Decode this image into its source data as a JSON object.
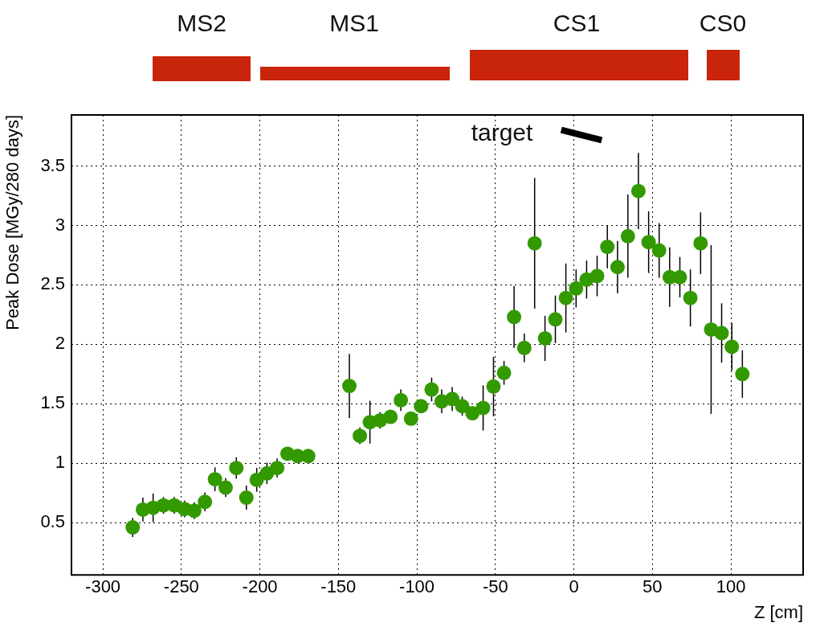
{
  "chart_data": {
    "type": "scatter",
    "xlabel": "Z [cm]",
    "ylabel": "Peak Dose [MGy/280 days]",
    "annotations": [
      "MS2",
      "MS1",
      "CS1",
      "CS0",
      "target"
    ],
    "xlim": [
      -320,
      146
    ],
    "xticks": [
      -300,
      -250,
      -200,
      -150,
      -100,
      -50,
      0,
      50,
      100
    ],
    "ylim": [
      0.06,
      3.93
    ],
    "yticks": [
      0.5,
      1,
      1.5,
      2,
      2.5,
      3,
      3.5
    ],
    "grid": true,
    "marker": "circle",
    "series": [
      {
        "color": "#339900",
        "x": [
          -281,
          -274.5,
          -268,
          -261.4,
          -254.5,
          -248,
          -241.8,
          -235,
          -228.6,
          -221.8,
          -215,
          -208.6,
          -202,
          -195.5,
          -189,
          -182.4,
          -175.9,
          -169.2,
          -143,
          -136.3,
          -129.9,
          -123.4,
          -116.8,
          -110.2,
          -103.7,
          -97.3,
          -90.6,
          -84.2,
          -77.5,
          -71.1,
          -64.6,
          -57.8,
          -51.2,
          -44.5,
          -38.1,
          -31.6,
          -25,
          -18.4,
          -11.8,
          -5.1,
          1.4,
          8.1,
          14.8,
          21.3,
          27.8,
          34.4,
          41.1,
          47.6,
          54.3,
          61,
          67.5,
          74.2,
          80.7,
          87.4,
          94.1,
          100.6,
          107.3
        ],
        "values": [
          0.46,
          0.61,
          0.625,
          0.645,
          0.645,
          0.615,
          0.6,
          0.675,
          0.865,
          0.795,
          0.96,
          0.71,
          0.86,
          0.915,
          0.96,
          1.08,
          1.06,
          1.06,
          1.65,
          1.23,
          1.345,
          1.36,
          1.39,
          1.53,
          1.375,
          1.48,
          1.62,
          1.52,
          1.54,
          1.48,
          1.42,
          1.465,
          1.645,
          1.76,
          2.23,
          1.97,
          2.85,
          2.05,
          2.21,
          2.39,
          2.47,
          2.545,
          2.575,
          2.82,
          2.65,
          2.91,
          3.29,
          2.86,
          2.79,
          2.565,
          2.565,
          2.39,
          2.85,
          2.125,
          2.095,
          1.98,
          1.75
        ],
        "errors": [
          0.08,
          0.1,
          0.12,
          0.07,
          0.07,
          0.07,
          0.07,
          0.08,
          0.1,
          0.08,
          0.09,
          0.1,
          0.1,
          0.09,
          0.08,
          null,
          null,
          null,
          0.27,
          0.07,
          0.18,
          0.07,
          null,
          0.09,
          null,
          null,
          0.1,
          0.1,
          0.1,
          0.08,
          null,
          0.19,
          0.25,
          0.1,
          0.26,
          0.12,
          0.55,
          0.19,
          0.2,
          0.29,
          0.16,
          0.16,
          0.17,
          0.18,
          0.22,
          0.35,
          0.32,
          0.26,
          0.23,
          0.25,
          0.17,
          0.24,
          0.26,
          0.71,
          0.25,
          0.2,
          0.2
        ]
      }
    ]
  }
}
